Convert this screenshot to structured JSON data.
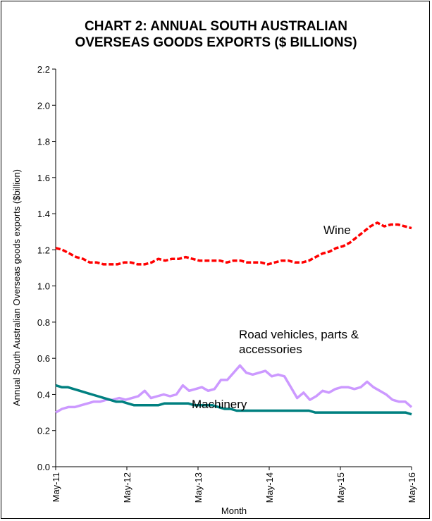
{
  "chart_data": {
    "type": "line",
    "title_line1": "CHART 2: ANNUAL SOUTH AUSTRALIAN",
    "title_line2": "OVERSEAS GOODS EXPORTS ($ BILLIONS)",
    "xlabel": "Month",
    "ylabel": "Annual South Australian Overseas  goods exports ($billion)",
    "ylim": [
      0,
      2.2
    ],
    "y_ticks": [
      0,
      0.2,
      0.4,
      0.6,
      0.8,
      1.0,
      1.2,
      1.4,
      1.6,
      1.8,
      2.0,
      2.2
    ],
    "y_tick_labels": [
      "0.0",
      "0.2",
      "0.4",
      "0.6",
      "0.8",
      "1.0",
      "1.2",
      "1.4",
      "1.6",
      "1.8",
      "2.0",
      "2.2"
    ],
    "x_range": [
      "May-11",
      "May-16"
    ],
    "x_tick_labels": [
      "May-11",
      "May-12",
      "May-13",
      "May-14",
      "May-15",
      "May-16"
    ],
    "grid": false,
    "series": [
      {
        "name": "Wine",
        "label_text": "Wine",
        "color": "#ff0000",
        "style": "dashed",
        "values": [
          1.21,
          1.2,
          1.18,
          1.16,
          1.15,
          1.13,
          1.13,
          1.12,
          1.12,
          1.12,
          1.13,
          1.13,
          1.12,
          1.12,
          1.13,
          1.15,
          1.14,
          1.15,
          1.15,
          1.16,
          1.15,
          1.14,
          1.14,
          1.14,
          1.14,
          1.13,
          1.14,
          1.14,
          1.13,
          1.13,
          1.13,
          1.12,
          1.13,
          1.14,
          1.14,
          1.13,
          1.13,
          1.14,
          1.16,
          1.18,
          1.19,
          1.21,
          1.22,
          1.24,
          1.27,
          1.3,
          1.33,
          1.35,
          1.33,
          1.34,
          1.34,
          1.33,
          1.32
        ]
      },
      {
        "name": "Road vehicles, parts & accessories",
        "label_line1": "Road vehicles, parts &",
        "label_line2": "accessories",
        "color": "#cc99ff",
        "style": "solid",
        "values": [
          0.3,
          0.32,
          0.33,
          0.33,
          0.34,
          0.35,
          0.36,
          0.36,
          0.37,
          0.37,
          0.38,
          0.37,
          0.38,
          0.39,
          0.42,
          0.38,
          0.39,
          0.4,
          0.39,
          0.4,
          0.45,
          0.42,
          0.43,
          0.44,
          0.42,
          0.43,
          0.48,
          0.48,
          0.52,
          0.56,
          0.52,
          0.51,
          0.52,
          0.53,
          0.5,
          0.51,
          0.5,
          0.44,
          0.38,
          0.41,
          0.37,
          0.39,
          0.42,
          0.41,
          0.43,
          0.44,
          0.44,
          0.43,
          0.44,
          0.47,
          0.44,
          0.42,
          0.4,
          0.37,
          0.36,
          0.36,
          0.33
        ]
      },
      {
        "name": "Machinery",
        "label_text": "Machinery",
        "color": "#008080",
        "style": "solid",
        "values": [
          0.45,
          0.44,
          0.44,
          0.43,
          0.42,
          0.41,
          0.4,
          0.39,
          0.38,
          0.37,
          0.36,
          0.36,
          0.35,
          0.34,
          0.34,
          0.34,
          0.34,
          0.34,
          0.35,
          0.35,
          0.35,
          0.35,
          0.35,
          0.34,
          0.34,
          0.34,
          0.34,
          0.33,
          0.32,
          0.32,
          0.31,
          0.31,
          0.31,
          0.31,
          0.31,
          0.31,
          0.31,
          0.31,
          0.31,
          0.31,
          0.31,
          0.31,
          0.31,
          0.3,
          0.3,
          0.3,
          0.3,
          0.3,
          0.3,
          0.3,
          0.3,
          0.3,
          0.3,
          0.3,
          0.3,
          0.3,
          0.3,
          0.3,
          0.3,
          0.29
        ]
      }
    ]
  }
}
